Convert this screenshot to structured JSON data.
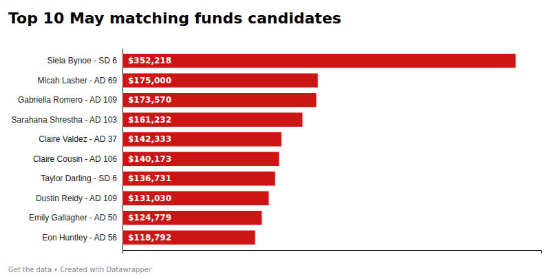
{
  "chart_data": {
    "type": "bar",
    "orientation": "horizontal",
    "title": "Top 10 May matching funds candidates",
    "categories": [
      "Siela Bynoe - SD 6",
      "Micah Lasher - AD 69",
      "Gabriella Romero - AD 109",
      "Sarahana Shrestha - AD 103",
      "Claire Valdez - AD 37",
      "Claire Cousin - AD 106",
      "Taylor Darling - SD 6",
      "Dustin Reidy - AD 109",
      "Emily Gallagher - AD 50",
      "Eon Huntley - AD 56"
    ],
    "values": [
      352218,
      175000,
      173570,
      161232,
      142333,
      140173,
      136731,
      131030,
      124779,
      118792
    ],
    "value_labels": [
      "$352,218",
      "$175,000",
      "$173,570",
      "$161,232",
      "$142,333",
      "$140,173",
      "$136,731",
      "$131,030",
      "$124,779",
      "$118,792"
    ],
    "data_labels": true,
    "color": "#cc1515",
    "xlim": [
      0,
      375000
    ],
    "tick_labels": "y",
    "annotations": [
      "Get the data",
      " • Created with ",
      "Datawrapper"
    ]
  }
}
